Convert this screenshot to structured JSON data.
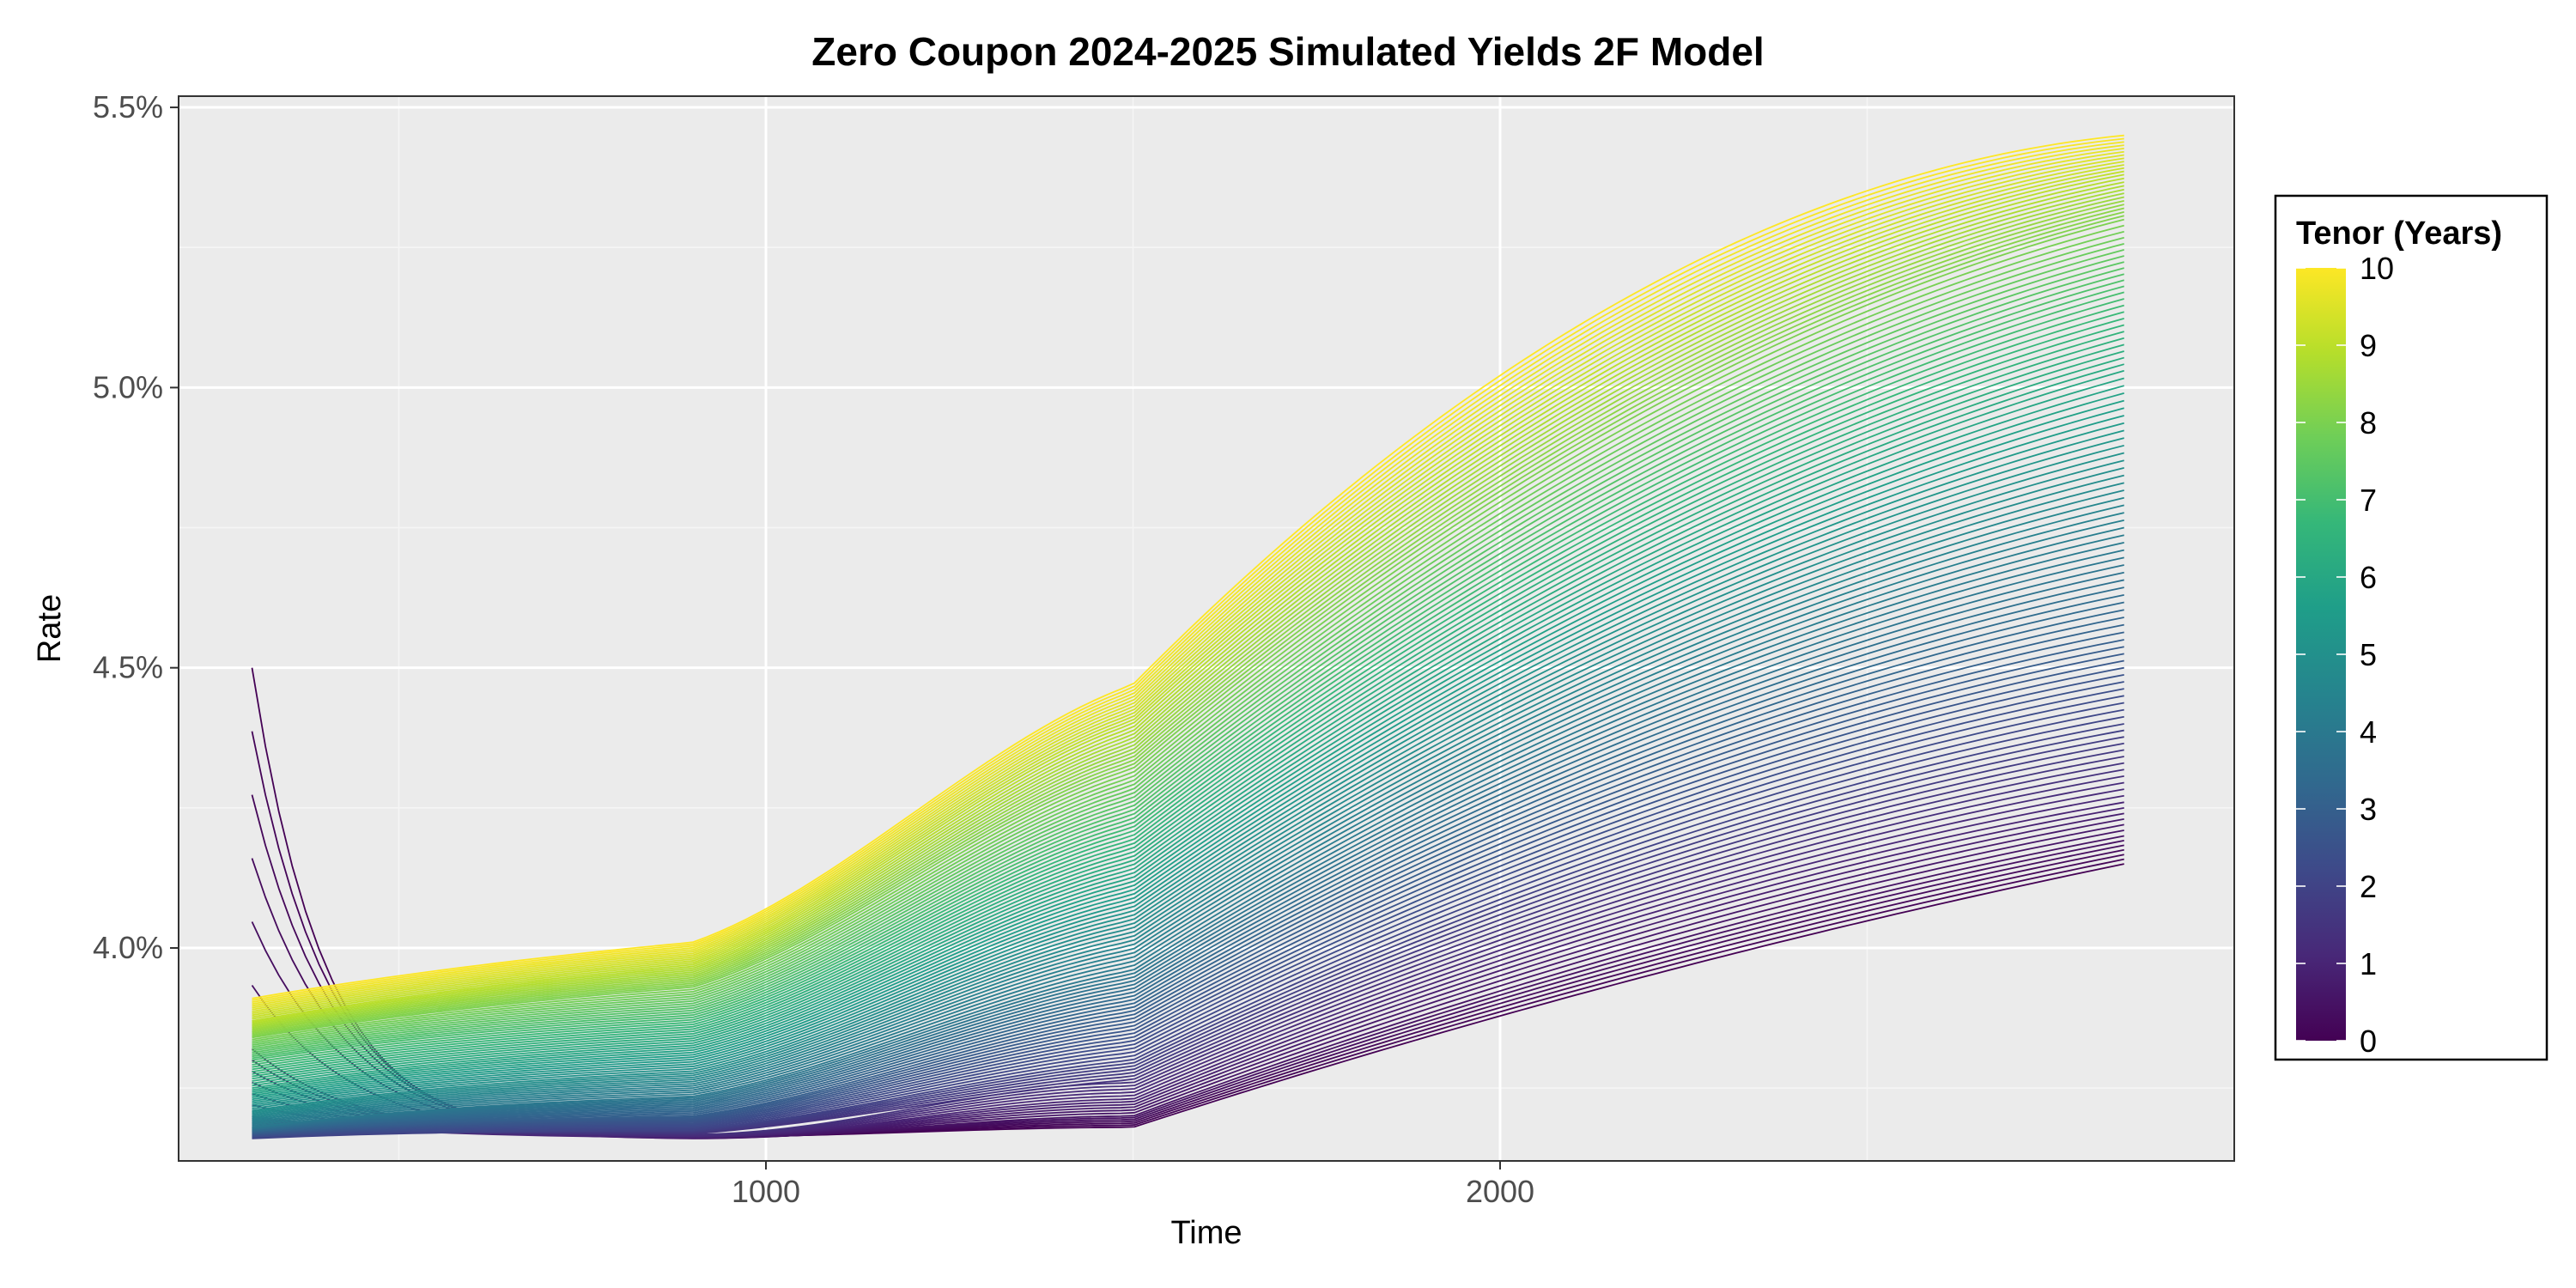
{
  "chart_data": {
    "type": "line",
    "title": "Zero Coupon 2024-2025 Simulated Yields 2F Model",
    "xlabel": "Time",
    "ylabel": "Rate",
    "xlim": [
      200,
      3000
    ],
    "ylim": [
      0.0362,
      0.0552
    ],
    "x_ticks": [
      {
        "value": 1000,
        "label": "1000"
      },
      {
        "value": 2000,
        "label": "2000"
      }
    ],
    "y_ticks": [
      {
        "value": 0.04,
        "label": "4.0%"
      },
      {
        "value": 0.045,
        "label": "4.5%"
      },
      {
        "value": 0.05,
        "label": "5.0%"
      },
      {
        "value": 0.055,
        "label": "5.5%"
      }
    ],
    "x_range": [
      300,
      2850
    ],
    "tenor_range": [
      0,
      10
    ],
    "series_count": 121,
    "series_anchors": {
      "tenor": [
        0,
        0.5,
        1,
        2,
        3,
        4,
        5,
        6,
        7,
        8,
        9,
        10
      ],
      "start_rate": [
        0.045,
        0.0382,
        0.037,
        0.0366,
        0.0367,
        0.0368,
        0.0371,
        0.0375,
        0.038,
        0.0384,
        0.0387,
        0.0391
      ],
      "rate_at_900": [
        0.03663,
        0.0366,
        0.03662,
        0.03675,
        0.037,
        0.03735,
        0.0378,
        0.0383,
        0.0388,
        0.0393,
        0.0397,
        0.0401
      ],
      "rate_at_1500": [
        0.0368,
        0.037,
        0.0373,
        0.038,
        0.0388,
        0.0396,
        0.0405,
        0.0414,
        0.0423,
        0.0432,
        0.044,
        0.0447
      ],
      "rate_at_2200": [
        0.0395,
        0.04,
        0.0406,
        0.0418,
        0.0431,
        0.0444,
        0.0457,
        0.047,
        0.0483,
        0.0496,
        0.0507,
        0.0518
      ],
      "end_rate": [
        0.0415,
        0.042,
        0.0426,
        0.044,
        0.0455,
        0.0471,
        0.0487,
        0.0503,
        0.0517,
        0.053,
        0.0538,
        0.0545
      ]
    },
    "grid": true,
    "legend": {
      "title": "Tenor (Years)",
      "position": "right",
      "type": "colorbar",
      "labels": [
        "10",
        "9",
        "8",
        "7",
        "6",
        "5",
        "4",
        "3",
        "2",
        "1",
        "0"
      ],
      "colormap": "viridis"
    },
    "colors": {
      "panel_background": "#ebebeb",
      "grid_major": "#ffffff",
      "grid_minor": "#f5f5f5",
      "viridis": [
        "#440154",
        "#482878",
        "#3e4989",
        "#31688e",
        "#26828e",
        "#1f9e89",
        "#35b779",
        "#6ece58",
        "#b5de2b",
        "#fde725"
      ]
    }
  }
}
